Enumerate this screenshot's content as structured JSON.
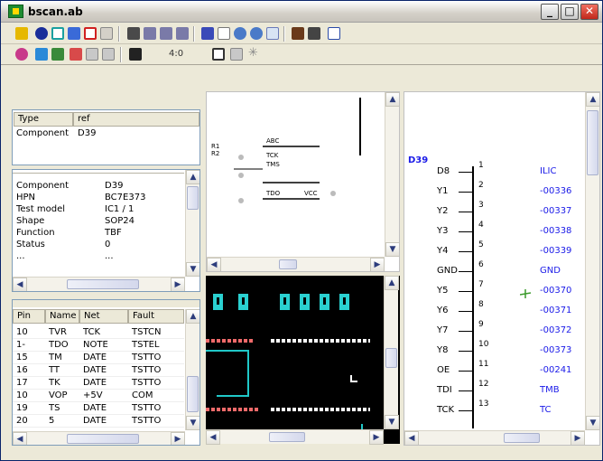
{
  "window": {
    "title": "bscan.ab",
    "min": "_",
    "max": "□",
    "close": "✕"
  },
  "toolbar2": {
    "zoom_text": "4:0"
  },
  "props_header": {
    "col1": "Type",
    "col2": "ref",
    "row_key": "Component",
    "row_val": "D39"
  },
  "details": [
    {
      "key": "Component",
      "val": "D39"
    },
    {
      "key": "HPN",
      "val": "BC7E373"
    },
    {
      "key": "Test model",
      "val": "IC1 / 1"
    },
    {
      "key": "Shape",
      "val": "SOP24"
    },
    {
      "key": "Function",
      "val": "TBF"
    },
    {
      "key": "Status",
      "val": "0"
    },
    {
      "key": "...",
      "val": "..."
    }
  ],
  "pins_table": {
    "headers": [
      "Pin",
      "Name",
      "Net",
      "Fault"
    ],
    "rows": [
      [
        "10",
        "TVR",
        "TCK",
        "TSTCN"
      ],
      [
        "1-",
        "TDO",
        "NOTE",
        "TSTEL"
      ],
      [
        "15",
        "TM",
        "DATE",
        "TSTTO"
      ],
      [
        "16",
        "TT",
        "DATE",
        "TSTTO"
      ],
      [
        "17",
        "TK",
        "DATE",
        "TSTTO"
      ],
      [
        "10",
        "VOP",
        "+5V",
        "COM"
      ],
      [
        "19",
        "TS",
        "DATE",
        "TSTTO"
      ],
      [
        "20",
        "5",
        "DATE",
        "TSTTO"
      ]
    ]
  },
  "schematic": {
    "ref": "D39",
    "pins": [
      {
        "name": "D8",
        "num": "1",
        "net": "ILIC"
      },
      {
        "name": "Y1",
        "num": "2",
        "net": "-00336"
      },
      {
        "name": "Y2",
        "num": "3",
        "net": "-00337"
      },
      {
        "name": "Y3",
        "num": "4",
        "net": "-00338"
      },
      {
        "name": "Y4",
        "num": "5",
        "net": "-00339"
      },
      {
        "name": "GND",
        "num": "6",
        "net": "GND"
      },
      {
        "name": "Y5",
        "num": "7",
        "net": "-00370"
      },
      {
        "name": "Y6",
        "num": "8",
        "net": "-00371"
      },
      {
        "name": "Y7",
        "num": "9",
        "net": "-00372"
      },
      {
        "name": "Y8",
        "num": "10",
        "net": "-00373"
      },
      {
        "name": "OE",
        "num": "11",
        "net": "-00241"
      },
      {
        "name": "TDI",
        "num": "12",
        "net": "TMB"
      },
      {
        "name": "TCK",
        "num": "13",
        "net": "TC"
      }
    ]
  },
  "colors": {
    "net_blue": "#1a1ae8",
    "pcb_bg": "#000000",
    "pad_cyan": "#2ad0d0",
    "title_green": "#1e8c32"
  },
  "icons": [
    "app-icon",
    "minimize-icon",
    "maximize-icon",
    "close-icon",
    "search-icon",
    "zoom-in-icon",
    "zoom-out-icon",
    "pointer-icon",
    "chip-icon"
  ]
}
